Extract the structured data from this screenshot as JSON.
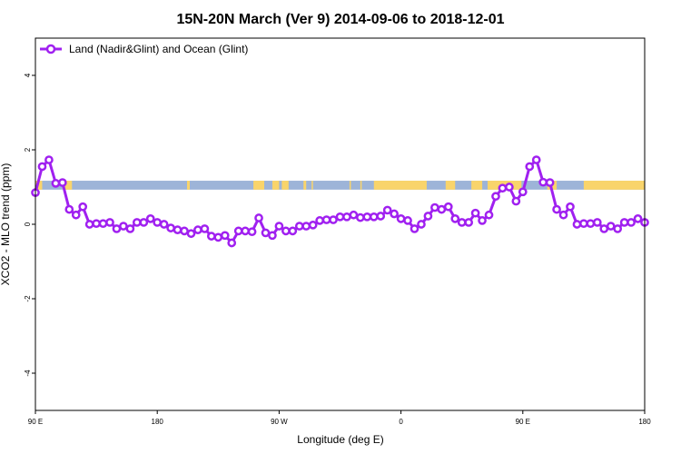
{
  "chart_data": {
    "type": "line",
    "title": "15N-20N March (Ver 9)   2014-09-06 to 2018-12-01",
    "xlabel": "Longitude (deg E)",
    "ylabel": "XCO2 - MLO trend (ppm)",
    "x_range_deg_east": [
      90,
      540
    ],
    "xlim_labels": [
      "90 E",
      "180"
    ],
    "x_ticks": [
      {
        "value": 90,
        "label": "90 E"
      },
      {
        "value": 180,
        "label": "180"
      },
      {
        "value": 270,
        "label": "90 W"
      },
      {
        "value": 360,
        "label": "0"
      },
      {
        "value": 450,
        "label": "90 E"
      },
      {
        "value": 540,
        "label": "180"
      }
    ],
    "ylim": [
      -5,
      5
    ],
    "y_ticks": [
      -4,
      -2,
      0,
      2,
      4
    ],
    "grid": false,
    "legend_position": "top-left",
    "series_color": "#a020f0",
    "land_color": "#f9d46b",
    "ocean_color": "#9db4d8",
    "surface_strip_y": [
      0.93,
      1.17
    ],
    "land_segments_deg_east": [
      [
        90,
        95
      ],
      [
        110,
        117
      ],
      [
        202,
        204
      ],
      [
        251,
        259
      ],
      [
        265,
        270
      ],
      [
        272,
        277
      ],
      [
        288,
        290
      ],
      [
        294,
        295
      ],
      [
        322,
        323
      ],
      [
        330,
        331
      ],
      [
        340,
        379
      ],
      [
        393,
        400
      ],
      [
        412,
        420
      ],
      [
        424,
        449
      ],
      [
        468,
        475
      ],
      [
        495,
        540
      ]
    ],
    "series": [
      {
        "name": "Land (Nadir&Glint) and Ocean (Glint)",
        "x": [
          90,
          95,
          100,
          105,
          110,
          115,
          120,
          125,
          130,
          135,
          140,
          145,
          150,
          155,
          160,
          165,
          170,
          175,
          180,
          185,
          190,
          195,
          200,
          205,
          210,
          215,
          220,
          225,
          230,
          235,
          240,
          245,
          250,
          255,
          260,
          265,
          270,
          275,
          280,
          285,
          290,
          295,
          300,
          305,
          310,
          315,
          320,
          325,
          330,
          335,
          340,
          345,
          350,
          355,
          360,
          365,
          370,
          375,
          380,
          385,
          390,
          395,
          400,
          405,
          410,
          415,
          420,
          425,
          430,
          435,
          440,
          445,
          450,
          455,
          460,
          465,
          470,
          475,
          480,
          485,
          490,
          495,
          500,
          505,
          510,
          515,
          520,
          525,
          530,
          535,
          540
        ],
        "y": [
          0.85,
          1.55,
          1.73,
          1.1,
          1.12,
          0.4,
          0.25,
          0.47,
          0.0,
          0.02,
          0.02,
          0.05,
          -0.12,
          -0.05,
          -0.12,
          0.05,
          0.05,
          0.15,
          0.05,
          0.0,
          -0.1,
          -0.15,
          -0.18,
          -0.25,
          -0.15,
          -0.12,
          -0.32,
          -0.35,
          -0.3,
          -0.5,
          -0.18,
          -0.18,
          -0.2,
          0.17,
          -0.23,
          -0.3,
          -0.05,
          -0.18,
          -0.18,
          -0.05,
          -0.05,
          -0.02,
          0.1,
          0.12,
          0.12,
          0.2,
          0.2,
          0.25,
          0.18,
          0.2,
          0.2,
          0.22,
          0.38,
          0.28,
          0.15,
          0.1,
          -0.12,
          0.0,
          0.22,
          0.45,
          0.4,
          0.47,
          0.15,
          0.05,
          0.05,
          0.3,
          0.1,
          0.25,
          0.75,
          0.97,
          1.0,
          0.62,
          0.87,
          1.55,
          1.73,
          1.13,
          1.12,
          0.4,
          0.25,
          0.47,
          0.0,
          0.02,
          0.02,
          0.05,
          -0.12,
          -0.05,
          -0.12,
          0.05,
          0.05,
          0.15,
          0.05
        ]
      }
    ]
  }
}
